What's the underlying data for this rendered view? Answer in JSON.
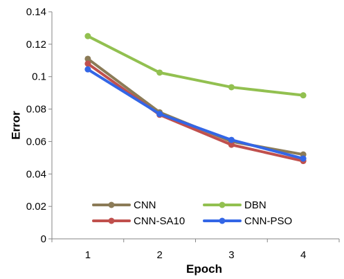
{
  "chart_data": {
    "type": "line",
    "title": "",
    "xlabel": "Epoch",
    "ylabel": "Error",
    "x": [
      1,
      2,
      3,
      4
    ],
    "x_tick_labels": [
      "1",
      "2",
      "3",
      "4"
    ],
    "ylim": [
      0,
      0.14
    ],
    "y_ticks": [
      0,
      0.02,
      0.04,
      0.06,
      0.08,
      0.1,
      0.12,
      0.14
    ],
    "y_tick_labels": [
      "0",
      "0.02",
      "0.04",
      "0.06",
      "0.08",
      "0.1",
      "0.12",
      "0.14"
    ],
    "grid": false,
    "legend_position": "bottom, inside plot, two columns",
    "series": [
      {
        "name": "CNN",
        "color": "#8B7B57",
        "values": [
          0.111,
          0.078,
          0.06,
          0.052
        ]
      },
      {
        "name": "DBN",
        "color": "#92C050",
        "values": [
          0.125,
          0.1025,
          0.0935,
          0.0885
        ]
      },
      {
        "name": "CNN-SA10",
        "color": "#C0504D",
        "values": [
          0.108,
          0.0765,
          0.058,
          0.048
        ]
      },
      {
        "name": "CNN-PSO",
        "color": "#3366E6",
        "values": [
          0.1045,
          0.077,
          0.061,
          0.0495
        ]
      }
    ]
  }
}
